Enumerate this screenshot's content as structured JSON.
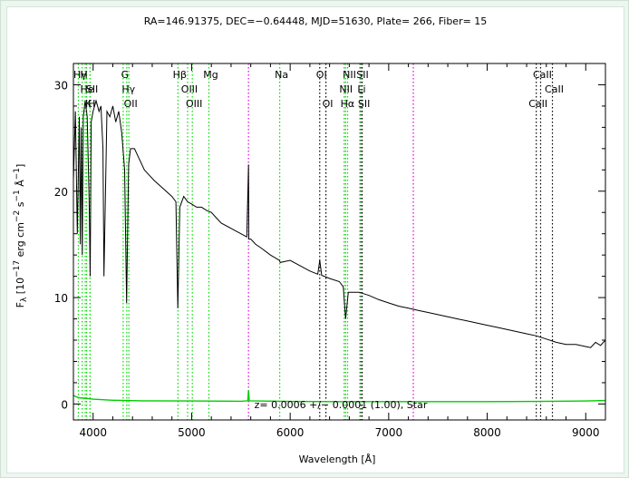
{
  "chart_data": {
    "type": "line",
    "title": "RA=146.91375, DEC=−0.64448, MJD=51630, Plate= 266, Fiber= 15",
    "xlabel": "Wavelength [Å]",
    "ylabel": "F_λ [10^-17 erg cm^-2 s^-1 Å^-1]",
    "ylabel_parts": {
      "f": "F",
      "f_sub": "λ",
      "unit_open": "[10",
      "exp1": "−17",
      "erg_cm": "erg cm",
      "exp2": "−2",
      "s": "s",
      "exp3": "−1",
      "angstrom": "Å",
      "exp4": "−1",
      "close": "]"
    },
    "redshift_label": "z= 0.0006 +/− 0.0001 (1.00), Star",
    "xlim": [
      3800,
      9200
    ],
    "ylim": [
      -1.5,
      32
    ],
    "xticks": [
      4000,
      5000,
      6000,
      7000,
      8000,
      9000
    ],
    "yticks": [
      0,
      10,
      20,
      30
    ],
    "grid": false,
    "colors": {
      "spectrum": "#000000",
      "error": "#00cc00",
      "line_green": "#00dd00",
      "line_black": "#000000",
      "line_magenta": "#dd00dd"
    },
    "series": [
      {
        "name": "flux",
        "x": [
          3800,
          3820,
          3840,
          3860,
          3870,
          3880,
          3890,
          3900,
          3920,
          3940,
          3960,
          3970,
          3980,
          4000,
          4030,
          4060,
          4080,
          4100,
          4110,
          4140,
          4170,
          4200,
          4230,
          4260,
          4290,
          4320,
          4340,
          4360,
          4380,
          4420,
          4470,
          4520,
          4570,
          4620,
          4680,
          4740,
          4800,
          4840,
          4860,
          4880,
          4920,
          4960,
          5000,
          5050,
          5100,
          5150,
          5200,
          5250,
          5300,
          5400,
          5500,
          5560,
          5577,
          5580,
          5600,
          5650,
          5700,
          5800,
          5890,
          5900,
          6000,
          6100,
          6200,
          6280,
          6300,
          6320,
          6400,
          6500,
          6540,
          6563,
          6590,
          6640,
          6700,
          6800,
          6900,
          7000,
          7100,
          7200,
          7300,
          7400,
          7500,
          7600,
          7700,
          7800,
          7900,
          8000,
          8100,
          8200,
          8300,
          8400,
          8500,
          8600,
          8700,
          8800,
          8900,
          9000,
          9050,
          9100,
          9150,
          9200
        ],
        "y": [
          21,
          27.5,
          16,
          27,
          15,
          26,
          14,
          27,
          28.5,
          27,
          19,
          12,
          26.5,
          27.5,
          28.5,
          27.5,
          28,
          24,
          12,
          27.5,
          27,
          28,
          26.5,
          27.5,
          25.5,
          22,
          9.5,
          22.5,
          24,
          24,
          23,
          22,
          21.5,
          21,
          20.5,
          20,
          19.5,
          19,
          9,
          18.5,
          19.5,
          19,
          18.8,
          18.5,
          18.5,
          18.2,
          18,
          17.5,
          17,
          16.5,
          16,
          15.7,
          22.5,
          15.5,
          15.5,
          15,
          14.7,
          14,
          13.5,
          13.3,
          13.5,
          13,
          12.5,
          12.2,
          13.5,
          12.1,
          11.8,
          11.5,
          11,
          8,
          10.5,
          10.5,
          10.5,
          10.2,
          9.8,
          9.5,
          9.2,
          9,
          8.8,
          8.6,
          8.4,
          8.2,
          8,
          7.8,
          7.6,
          7.4,
          7.2,
          7,
          6.8,
          6.6,
          6.4,
          6.1,
          5.8,
          5.6,
          5.6,
          5.4,
          5.3,
          5.8,
          5.5,
          6
        ]
      },
      {
        "name": "error",
        "x": [
          3800,
          3850,
          3900,
          4000,
          4200,
          4500,
          5000,
          5500,
          5570,
          5577,
          5585,
          6000,
          6500,
          7000,
          7500,
          8000,
          8500,
          9000,
          9200
        ],
        "y": [
          0.8,
          0.6,
          0.55,
          0.45,
          0.35,
          0.3,
          0.28,
          0.26,
          0.3,
          1.3,
          0.3,
          0.24,
          0.22,
          0.22,
          0.22,
          0.22,
          0.24,
          0.28,
          0.32
        ]
      }
    ],
    "spectral_lines": [
      {
        "label": "Hγ",
        "wave": 3850,
        "color": "green",
        "row": 1
      },
      {
        "label": "H",
        "wave": 3889,
        "color": "green",
        "row": 1
      },
      {
        "label": "He",
        "wave": 3920,
        "color": "green",
        "row": 2
      },
      {
        "label": "SII",
        "wave": 3970,
        "color": "green",
        "row": 2
      },
      {
        "label": "K",
        "wave": 3934,
        "color": "green",
        "row": 3
      },
      {
        "label": "H",
        "wave": 3968,
        "color": "green",
        "row": 3
      },
      {
        "label": "G",
        "wave": 4305,
        "color": "green",
        "row": 1
      },
      {
        "label": "Hγ",
        "wave": 4341,
        "color": "green",
        "row": 2
      },
      {
        "label": "OII",
        "wave": 4363,
        "color": "green",
        "row": 3
      },
      {
        "label": "Hβ",
        "wave": 4861,
        "color": "green",
        "row": 1
      },
      {
        "label": "OIII",
        "wave": 4959,
        "color": "green",
        "row": 2
      },
      {
        "label": "OIII",
        "wave": 5007,
        "color": "green",
        "row": 3
      },
      {
        "label": "Mg",
        "wave": 5175,
        "color": "green",
        "row": 1
      },
      {
        "label": "Na",
        "wave": 5894,
        "color": "green",
        "row": 1
      },
      {
        "label": "OI",
        "wave": 6300,
        "color": "black",
        "row": 1
      },
      {
        "label": "OI",
        "wave": 6363,
        "color": "black",
        "row": 3
      },
      {
        "label": "NII",
        "wave": 6583,
        "color": "green",
        "row": 1
      },
      {
        "label": "SII",
        "wave": 6716,
        "color": "black",
        "row": 1
      },
      {
        "label": "NII",
        "wave": 6548,
        "color": "green",
        "row": 2
      },
      {
        "label": "Li",
        "wave": 6707,
        "color": "green",
        "row": 2
      },
      {
        "label": "Hα",
        "wave": 6563,
        "color": "green",
        "row": 3
      },
      {
        "label": "SII",
        "wave": 6731,
        "color": "black",
        "row": 3
      },
      {
        "label": "CaII",
        "wave": 8542,
        "color": "black",
        "row": 1
      },
      {
        "label": "CaII",
        "wave": 8662,
        "color": "black",
        "row": 2
      },
      {
        "label": "CaII",
        "wave": 8498,
        "color": "black",
        "row": 3
      }
    ],
    "sky_lines": [
      {
        "wave": 5577,
        "color": "magenta"
      },
      {
        "wave": 7250,
        "color": "magenta"
      }
    ]
  }
}
